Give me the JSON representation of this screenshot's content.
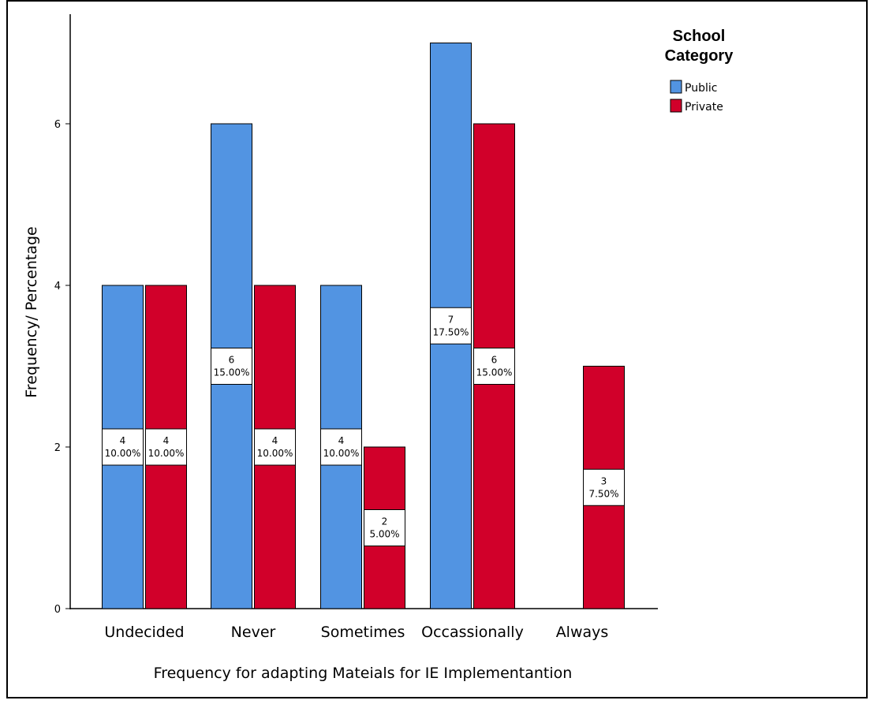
{
  "chart_data": {
    "type": "bar",
    "title": "",
    "xlabel": "Frequency for adapting Mateials  for IE Implementantion",
    "ylabel": "Frequency/ Percentage",
    "ylim": [
      0,
      7.2
    ],
    "yticks": [
      0,
      2,
      4,
      6
    ],
    "categories": [
      "Undecided",
      "Never",
      "Sometimes",
      "Occassionally",
      "Always"
    ],
    "series": [
      {
        "name": "Public",
        "color": "#5294E2",
        "values": [
          4,
          6,
          4,
          7,
          null
        ],
        "labels": [
          [
            "4",
            "10.00%"
          ],
          [
            "6",
            "15.00%"
          ],
          [
            "4",
            "10.00%"
          ],
          [
            "7",
            "17.50%"
          ],
          null
        ]
      },
      {
        "name": "Private",
        "color": "#D1002A",
        "values": [
          4,
          4,
          2,
          6,
          3
        ],
        "labels": [
          [
            "4",
            "10.00%"
          ],
          [
            "4",
            "10.00%"
          ],
          [
            "2",
            "5.00%"
          ],
          [
            "6",
            "15.00%"
          ],
          [
            "3",
            "7.50%"
          ]
        ]
      }
    ],
    "legend": {
      "title": [
        "School",
        "Category"
      ],
      "placement": "top-right"
    },
    "grid": false
  }
}
